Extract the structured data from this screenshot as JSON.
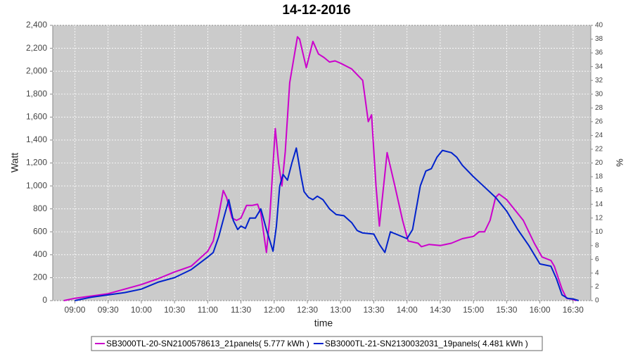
{
  "chart_data": {
    "type": "line",
    "title": "14-12-2016",
    "x_label": "time",
    "y_label": "Watt",
    "y2_label": "%",
    "xlim": [
      "08:40",
      "16:46"
    ],
    "xticks": [
      "09:00",
      "09:30",
      "10:00",
      "10:30",
      "11:00",
      "11:30",
      "12:00",
      "12:30",
      "13:00",
      "13:30",
      "14:00",
      "14:30",
      "15:00",
      "15:30",
      "16:00",
      "16:30"
    ],
    "ylim": [
      0,
      2400
    ],
    "yticks": [
      0,
      200,
      400,
      600,
      800,
      {
        "value": 1000,
        "label": "1,000"
      },
      {
        "value": 1200,
        "label": "1,200"
      },
      {
        "value": 1400,
        "label": "1,400"
      },
      {
        "value": 1600,
        "label": "1,600"
      },
      {
        "value": 1800,
        "label": "1,800"
      },
      {
        "value": 2000,
        "label": "2,000"
      },
      {
        "value": 2200,
        "label": "2,200"
      },
      {
        "value": 2400,
        "label": "2,400"
      }
    ],
    "y2lim": [
      0,
      40
    ],
    "y2ticks": [
      0,
      2,
      4,
      6,
      8,
      10,
      12,
      14,
      16,
      18,
      20,
      22,
      24,
      26,
      28,
      30,
      32,
      34,
      36,
      38,
      40
    ],
    "grid": true,
    "legend": "bottom",
    "series": [
      {
        "name": "SB3000TL-20-SN2100578613_21panels( 5.777 kWh )",
        "color": "#cc00cc",
        "x": [
          "08:50",
          "09:00",
          "09:15",
          "09:30",
          "09:45",
          "10:00",
          "10:15",
          "10:30",
          "10:45",
          "11:00",
          "11:05",
          "11:10",
          "11:14",
          "11:17",
          "11:22",
          "11:26",
          "11:30",
          "11:35",
          "11:40",
          "11:45",
          "11:48",
          "11:53",
          "11:56",
          "12:01",
          "12:04",
          "12:07",
          "12:10",
          "12:14",
          "12:21",
          "12:23",
          "12:29",
          "12:35",
          "12:40",
          "12:45",
          "12:50",
          "12:55",
          "13:00",
          "13:10",
          "13:16",
          "13:20",
          "13:25",
          "13:28",
          "13:32",
          "13:35",
          "13:42",
          "13:49",
          "13:56",
          "14:01",
          "14:10",
          "14:13",
          "14:20",
          "14:30",
          "14:40",
          "14:50",
          "15:00",
          "15:05",
          "15:10",
          "15:15",
          "15:20",
          "15:23",
          "15:30",
          "15:35",
          "15:45",
          "15:55",
          "16:02",
          "16:10",
          "16:13",
          "16:20",
          "16:24",
          "16:30",
          "16:33"
        ],
        "values": [
          0,
          20,
          40,
          60,
          100,
          140,
          190,
          250,
          300,
          430,
          520,
          750,
          960,
          900,
          720,
          700,
          720,
          830,
          830,
          840,
          760,
          420,
          720,
          1500,
          1200,
          1000,
          1300,
          1900,
          2300,
          2280,
          2030,
          2260,
          2150,
          2120,
          2080,
          2090,
          2070,
          2020,
          1960,
          1920,
          1560,
          1620,
          1000,
          650,
          1290,
          1000,
          700,
          520,
          500,
          470,
          490,
          480,
          500,
          540,
          560,
          600,
          600,
          700,
          900,
          930,
          880,
          820,
          700,
          500,
          380,
          350,
          300,
          100,
          20,
          10,
          0
        ]
      },
      {
        "name": "SB3000TL-21-SN2130032031_19panels( 4.481 kWh )",
        "color": "#0022cc",
        "x": [
          "09:00",
          "09:15",
          "09:30",
          "09:45",
          "10:00",
          "10:15",
          "10:30",
          "10:45",
          "11:00",
          "11:05",
          "11:10",
          "11:15",
          "11:19",
          "11:23",
          "11:27",
          "11:30",
          "11:34",
          "11:38",
          "11:43",
          "11:48",
          "11:53",
          "11:59",
          "12:02",
          "12:05",
          "12:08",
          "12:12",
          "12:16",
          "12:20",
          "12:24",
          "12:27",
          "12:31",
          "12:35",
          "12:39",
          "12:44",
          "12:50",
          "12:56",
          "13:03",
          "13:10",
          "13:15",
          "13:20",
          "13:30",
          "13:35",
          "13:40",
          "13:45",
          "13:50",
          "14:00",
          "14:05",
          "14:12",
          "14:17",
          "14:22",
          "14:27",
          "14:32",
          "14:40",
          "14:45",
          "14:50",
          "15:00",
          "15:10",
          "15:20",
          "15:30",
          "15:40",
          "15:50",
          "16:00",
          "16:05",
          "16:10",
          "16:15",
          "16:20",
          "16:25",
          "16:30",
          "16:35"
        ],
        "values": [
          0,
          30,
          50,
          70,
          100,
          160,
          200,
          270,
          380,
          420,
          560,
          740,
          880,
          700,
          620,
          650,
          630,
          720,
          720,
          800,
          620,
          430,
          650,
          1000,
          1100,
          1050,
          1200,
          1330,
          1100,
          950,
          900,
          880,
          910,
          880,
          800,
          750,
          740,
          680,
          610,
          590,
          580,
          490,
          420,
          600,
          580,
          540,
          620,
          1000,
          1130,
          1150,
          1250,
          1310,
          1290,
          1250,
          1180,
          1080,
          990,
          900,
          780,
          620,
          480,
          320,
          310,
          300,
          190,
          50,
          20,
          15,
          0
        ]
      }
    ]
  }
}
